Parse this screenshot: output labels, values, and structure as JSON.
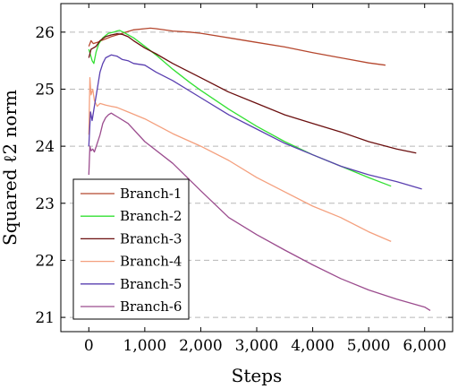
{
  "chart_data": {
    "type": "line",
    "title": "",
    "xlabel": "Steps",
    "ylabel": "Squared ℓ2 norm",
    "xlim": [
      -500,
      6500
    ],
    "ylim": [
      20.75,
      26.5
    ],
    "x_ticks": [
      0,
      1000,
      2000,
      3000,
      4000,
      5000,
      6000
    ],
    "x_tick_labels": [
      "0",
      "1,000",
      "2,000",
      "3,000",
      "4,000",
      "5,000",
      "6,000"
    ],
    "y_ticks": [
      21,
      22,
      23,
      24,
      25,
      26
    ],
    "y_tick_labels": [
      "21",
      "22",
      "23",
      "24",
      "25",
      "26"
    ],
    "grid": "horizontal dashed",
    "legend_position": "lower-left",
    "series": [
      {
        "name": "Branch-1",
        "color": "#b5472e",
        "x": [
          0,
          40,
          80,
          150,
          250,
          400,
          600,
          800,
          1000,
          1100,
          1200,
          1500,
          1800,
          2000,
          2500,
          3000,
          3500,
          4000,
          4500,
          5000,
          5300
        ],
        "y": [
          25.75,
          25.85,
          25.8,
          25.82,
          25.86,
          25.92,
          25.98,
          26.04,
          26.06,
          26.07,
          26.06,
          26.02,
          26.0,
          25.98,
          25.9,
          25.82,
          25.74,
          25.64,
          25.55,
          25.46,
          25.42
        ]
      },
      {
        "name": "Branch-2",
        "color": "#33e033",
        "x": [
          0,
          30,
          60,
          90,
          130,
          180,
          250,
          350,
          450,
          500,
          550,
          650,
          800,
          1000,
          1200,
          1500,
          1800,
          2000,
          2500,
          3000,
          3500,
          4000,
          4500,
          5000,
          5400
        ],
        "y": [
          25.7,
          25.6,
          25.5,
          25.45,
          25.65,
          25.8,
          25.9,
          25.98,
          26.0,
          26.02,
          26.03,
          25.98,
          25.9,
          25.75,
          25.6,
          25.35,
          25.12,
          24.98,
          24.65,
          24.35,
          24.08,
          23.85,
          23.65,
          23.45,
          23.3
        ]
      },
      {
        "name": "Branch-3",
        "color": "#6b0f0f",
        "x": [
          0,
          40,
          80,
          130,
          200,
          300,
          400,
          500,
          600,
          700,
          800,
          1000,
          1200,
          1500,
          2000,
          2500,
          3000,
          3500,
          4000,
          4500,
          5000,
          5500,
          5850
        ],
        "y": [
          25.55,
          25.7,
          25.72,
          25.75,
          25.85,
          25.92,
          25.95,
          25.97,
          25.96,
          25.92,
          25.85,
          25.72,
          25.62,
          25.45,
          25.2,
          24.95,
          24.75,
          24.55,
          24.4,
          24.25,
          24.08,
          23.95,
          23.88
        ]
      },
      {
        "name": "Branch-4",
        "color": "#f4a07e",
        "x": [
          0,
          20,
          40,
          70,
          100,
          150,
          200,
          300,
          400,
          500,
          700,
          1000,
          1500,
          2000,
          2500,
          3000,
          3500,
          4000,
          4500,
          5000,
          5400
        ],
        "y": [
          24.2,
          25.2,
          24.9,
          25.0,
          24.8,
          24.7,
          24.75,
          24.72,
          24.7,
          24.68,
          24.6,
          24.48,
          24.22,
          24.0,
          23.75,
          23.45,
          23.2,
          22.95,
          22.75,
          22.5,
          22.33
        ]
      },
      {
        "name": "Branch-5",
        "color": "#5a3fb0",
        "x": [
          0,
          30,
          60,
          100,
          150,
          200,
          250,
          300,
          400,
          500,
          600,
          700,
          800,
          1000,
          1200,
          1500,
          2000,
          2500,
          3000,
          3500,
          4000,
          4500,
          5000,
          5500,
          5950
        ],
        "y": [
          24.0,
          24.6,
          24.45,
          24.7,
          25.0,
          25.3,
          25.45,
          25.55,
          25.6,
          25.58,
          25.52,
          25.5,
          25.45,
          25.42,
          25.3,
          25.15,
          24.85,
          24.55,
          24.3,
          24.05,
          23.85,
          23.65,
          23.5,
          23.38,
          23.25
        ]
      },
      {
        "name": "Branch-6",
        "color": "#9b4c8e",
        "x": [
          0,
          20,
          40,
          70,
          100,
          150,
          200,
          250,
          300,
          350,
          400,
          500,
          700,
          1000,
          1500,
          2000,
          2500,
          3000,
          3500,
          4000,
          4500,
          5000,
          5500,
          6000,
          6100
        ],
        "y": [
          23.5,
          24.0,
          23.92,
          23.95,
          23.9,
          24.05,
          24.2,
          24.4,
          24.5,
          24.55,
          24.58,
          24.52,
          24.4,
          24.08,
          23.7,
          23.22,
          22.75,
          22.45,
          22.18,
          21.92,
          21.68,
          21.48,
          21.32,
          21.18,
          21.12
        ]
      }
    ]
  }
}
